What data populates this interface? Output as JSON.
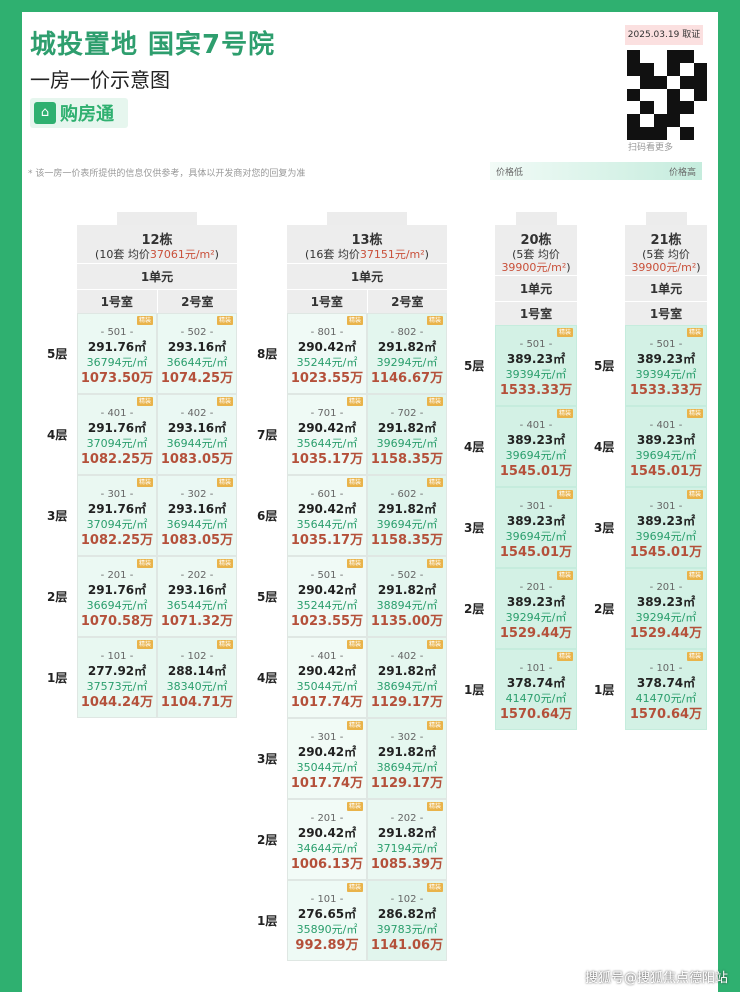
{
  "header": {
    "title": "城投置地 国宾7号院",
    "subtitle": "一房一价示意图",
    "logo_text": "购房通",
    "date_badge": "2025.03.19 取证",
    "qr_caption": "扫码看更多"
  },
  "note": "* 该一房一价表所提供的信息仅供参考，具体以开发商对您的回复为准",
  "legend": {
    "low": "价格低",
    "high": "价格高",
    "low_color": "#f2fbf7",
    "high_color": "#c5ecdd"
  },
  "badge_label": "精装",
  "footer": "搜狐号@搜狐焦点德阳站",
  "buildings": [
    {
      "name": "12栋",
      "count": "(10套  均价",
      "avg": "37061元/m²",
      "avg_close": ")",
      "unit": "1单元",
      "rooms": [
        "1号室",
        "2号室"
      ],
      "floors": [
        {
          "label": "5层",
          "units": [
            {
              "no": "- 501 -",
              "area": "291.76㎡",
              "unit_price": "36794元/㎡",
              "total": "1073.50万"
            },
            {
              "no": "- 502 -",
              "area": "293.16㎡",
              "unit_price": "36644元/㎡",
              "total": "1074.25万"
            }
          ]
        },
        {
          "label": "4层",
          "units": [
            {
              "no": "- 401 -",
              "area": "291.76㎡",
              "unit_price": "37094元/㎡",
              "total": "1082.25万"
            },
            {
              "no": "- 402 -",
              "area": "293.16㎡",
              "unit_price": "36944元/㎡",
              "total": "1083.05万"
            }
          ]
        },
        {
          "label": "3层",
          "units": [
            {
              "no": "- 301 -",
              "area": "291.76㎡",
              "unit_price": "37094元/㎡",
              "total": "1082.25万"
            },
            {
              "no": "- 302 -",
              "area": "293.16㎡",
              "unit_price": "36944元/㎡",
              "total": "1083.05万"
            }
          ]
        },
        {
          "label": "2层",
          "units": [
            {
              "no": "- 201 -",
              "area": "291.76㎡",
              "unit_price": "36694元/㎡",
              "total": "1070.58万"
            },
            {
              "no": "- 202 -",
              "area": "293.16㎡",
              "unit_price": "36544元/㎡",
              "total": "1071.32万"
            }
          ]
        },
        {
          "label": "1层",
          "units": [
            {
              "no": "- 101 -",
              "area": "277.92㎡",
              "unit_price": "37573元/㎡",
              "total": "1044.24万"
            },
            {
              "no": "- 102 -",
              "area": "288.14㎡",
              "unit_price": "38340元/㎡",
              "total": "1104.71万"
            }
          ]
        }
      ]
    },
    {
      "name": "13栋",
      "count": "(16套  均价",
      "avg": "37151元/m²",
      "avg_close": ")",
      "unit": "1单元",
      "rooms": [
        "1号室",
        "2号室"
      ],
      "floors": [
        {
          "label": "8层",
          "units": [
            {
              "no": "- 801 -",
              "area": "290.42㎡",
              "unit_price": "35244元/㎡",
              "total": "1023.55万"
            },
            {
              "no": "- 802 -",
              "area": "291.82㎡",
              "unit_price": "39294元/㎡",
              "total": "1146.67万"
            }
          ]
        },
        {
          "label": "7层",
          "units": [
            {
              "no": "- 701 -",
              "area": "290.42㎡",
              "unit_price": "35644元/㎡",
              "total": "1035.17万"
            },
            {
              "no": "- 702 -",
              "area": "291.82㎡",
              "unit_price": "39694元/㎡",
              "total": "1158.35万"
            }
          ]
        },
        {
          "label": "6层",
          "units": [
            {
              "no": "- 601 -",
              "area": "290.42㎡",
              "unit_price": "35644元/㎡",
              "total": "1035.17万"
            },
            {
              "no": "- 602 -",
              "area": "291.82㎡",
              "unit_price": "39694元/㎡",
              "total": "1158.35万"
            }
          ]
        },
        {
          "label": "5层",
          "units": [
            {
              "no": "- 501 -",
              "area": "290.42㎡",
              "unit_price": "35244元/㎡",
              "total": "1023.55万"
            },
            {
              "no": "- 502 -",
              "area": "291.82㎡",
              "unit_price": "38894元/㎡",
              "total": "1135.00万"
            }
          ]
        },
        {
          "label": "4层",
          "units": [
            {
              "no": "- 401 -",
              "area": "290.42㎡",
              "unit_price": "35044元/㎡",
              "total": "1017.74万"
            },
            {
              "no": "- 402 -",
              "area": "291.82㎡",
              "unit_price": "38694元/㎡",
              "total": "1129.17万"
            }
          ]
        },
        {
          "label": "3层",
          "units": [
            {
              "no": "- 301 -",
              "area": "290.42㎡",
              "unit_price": "35044元/㎡",
              "total": "1017.74万"
            },
            {
              "no": "- 302 -",
              "area": "291.82㎡",
              "unit_price": "38694元/㎡",
              "total": "1129.17万"
            }
          ]
        },
        {
          "label": "2层",
          "units": [
            {
              "no": "- 201 -",
              "area": "290.42㎡",
              "unit_price": "34644元/㎡",
              "total": "1006.13万"
            },
            {
              "no": "- 202 -",
              "area": "291.82㎡",
              "unit_price": "37194元/㎡",
              "total": "1085.39万"
            }
          ]
        },
        {
          "label": "1层",
          "units": [
            {
              "no": "- 101 -",
              "area": "276.65㎡",
              "unit_price": "35890元/㎡",
              "total": "992.89万"
            },
            {
              "no": "- 102 -",
              "area": "286.82㎡",
              "unit_price": "39783元/㎡",
              "total": "1141.06万"
            }
          ]
        }
      ]
    },
    {
      "name": "20栋",
      "count": "(5套  均价",
      "avg": "39900元/m²",
      "avg_close": ")",
      "unit": "1单元",
      "rooms": [
        "1号室"
      ],
      "floors": [
        {
          "label": "5层",
          "units": [
            {
              "no": "- 501 -",
              "area": "389.23㎡",
              "unit_price": "39394元/㎡",
              "total": "1533.33万"
            }
          ]
        },
        {
          "label": "4层",
          "units": [
            {
              "no": "- 401 -",
              "area": "389.23㎡",
              "unit_price": "39694元/㎡",
              "total": "1545.01万"
            }
          ]
        },
        {
          "label": "3层",
          "units": [
            {
              "no": "- 301 -",
              "area": "389.23㎡",
              "unit_price": "39694元/㎡",
              "total": "1545.01万"
            }
          ]
        },
        {
          "label": "2层",
          "units": [
            {
              "no": "- 201 -",
              "area": "389.23㎡",
              "unit_price": "39294元/㎡",
              "total": "1529.44万"
            }
          ]
        },
        {
          "label": "1层",
          "units": [
            {
              "no": "- 101 -",
              "area": "378.74㎡",
              "unit_price": "41470元/㎡",
              "total": "1570.64万"
            }
          ]
        }
      ]
    },
    {
      "name": "21栋",
      "count": "(5套  均价",
      "avg": "39900元/m²",
      "avg_close": ")",
      "unit": "1单元",
      "rooms": [
        "1号室"
      ],
      "floors": [
        {
          "label": "5层",
          "units": [
            {
              "no": "- 501 -",
              "area": "389.23㎡",
              "unit_price": "39394元/㎡",
              "total": "1533.33万"
            }
          ]
        },
        {
          "label": "4层",
          "units": [
            {
              "no": "- 401 -",
              "area": "389.23㎡",
              "unit_price": "39694元/㎡",
              "total": "1545.01万"
            }
          ]
        },
        {
          "label": "3层",
          "units": [
            {
              "no": "- 301 -",
              "area": "389.23㎡",
              "unit_price": "39694元/㎡",
              "total": "1545.01万"
            }
          ]
        },
        {
          "label": "2层",
          "units": [
            {
              "no": "- 201 -",
              "area": "389.23㎡",
              "unit_price": "39294元/㎡",
              "total": "1529.44万"
            }
          ]
        },
        {
          "label": "1层",
          "units": [
            {
              "no": "- 101 -",
              "area": "378.74㎡",
              "unit_price": "41470元/㎡",
              "total": "1570.64万"
            }
          ]
        }
      ]
    }
  ]
}
